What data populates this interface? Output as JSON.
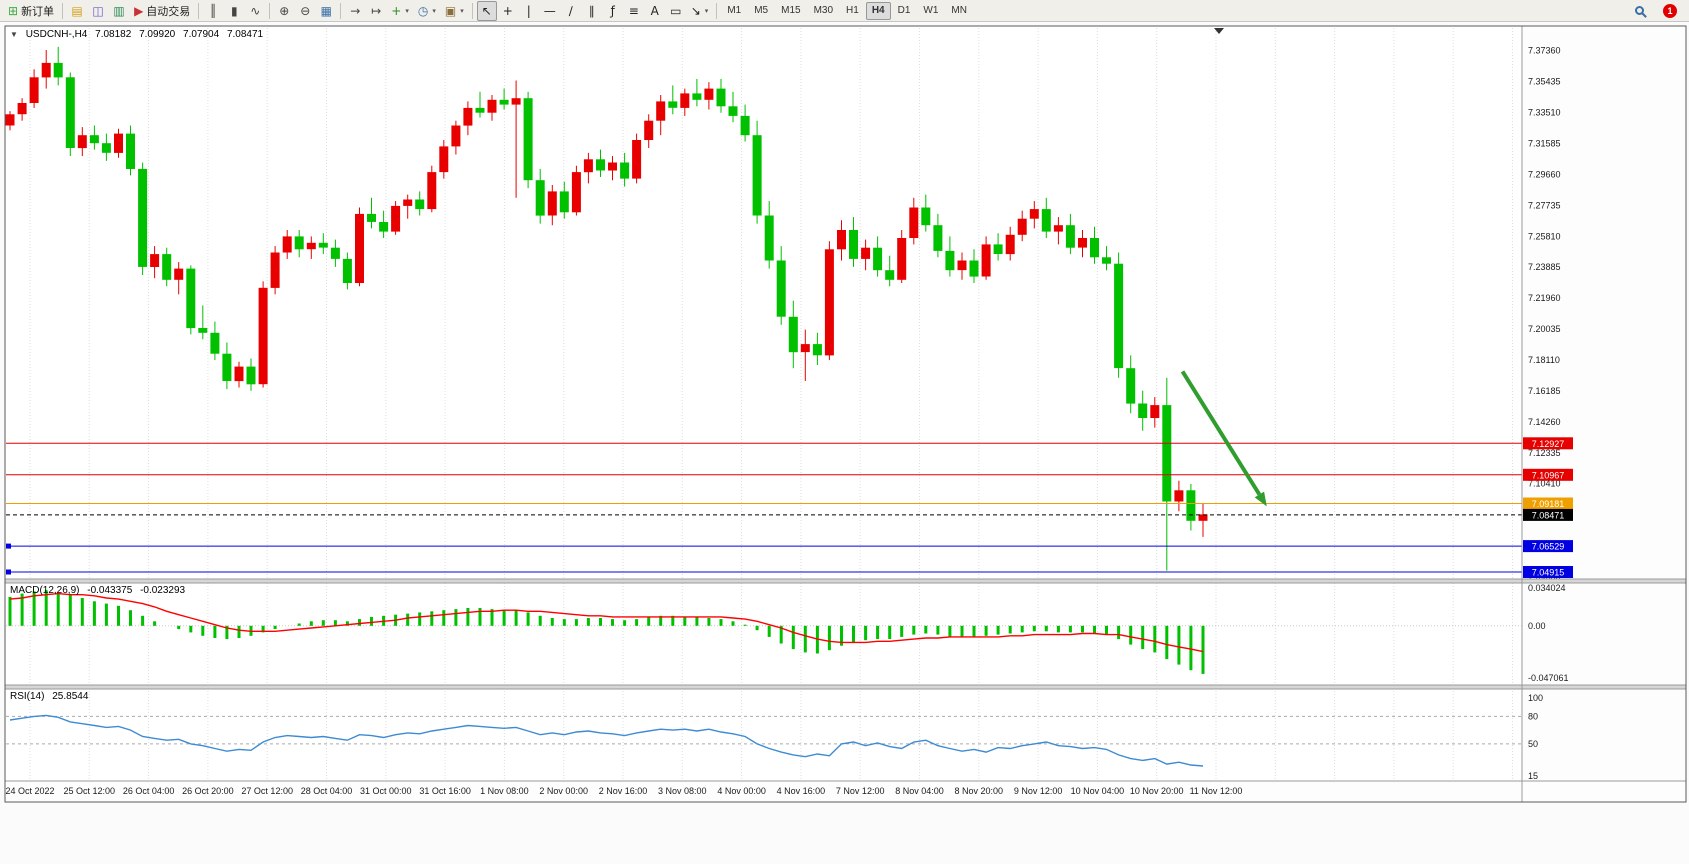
{
  "colors": {
    "up": "#e80000",
    "down": "#00c000",
    "macd_hist": "#00c000",
    "macd_signal": "#ff0000",
    "rsi_line": "#3d8bd4",
    "arrow": "#2f9e2f",
    "grid": "#dedede",
    "axis_text": "#1a1a1a"
  },
  "toolbar": {
    "items": [
      {
        "type": "btn",
        "name": "new-order-button",
        "glyph": "⊞",
        "color": "#3fae49",
        "label": "新订单"
      },
      {
        "type": "sep"
      },
      {
        "type": "btn",
        "name": "market-watch-button",
        "glyph": "▤",
        "color": "#d4a017"
      },
      {
        "type": "btn",
        "name": "data-window-button",
        "glyph": "◫",
        "color": "#6a5acd"
      },
      {
        "type": "btn",
        "name": "navigator-button",
        "glyph": "▥",
        "color": "#2e8b57"
      },
      {
        "type": "btn",
        "name": "auto-trading-button",
        "glyph": "▶",
        "color": "#c83232",
        "label": "自动交易"
      },
      {
        "type": "sep"
      },
      {
        "type": "btn",
        "name": "bar-chart-button",
        "glyph": "║",
        "color": "#444444"
      },
      {
        "type": "btn",
        "name": "candlestick-chart-button",
        "glyph": "▮",
        "color": "#444444"
      },
      {
        "type": "btn",
        "name": "line-chart-button",
        "glyph": "∿",
        "color": "#444444"
      },
      {
        "type": "sep"
      },
      {
        "type": "btn",
        "name": "zoom-in-button",
        "glyph": "⊕",
        "color": "#444444"
      },
      {
        "type": "btn",
        "name": "zoom-out-button",
        "glyph": "⊖",
        "color": "#444444"
      },
      {
        "type": "btn",
        "name": "tile-windows-button",
        "glyph": "▦",
        "color": "#3a6ea5"
      },
      {
        "type": "sep"
      },
      {
        "type": "btn",
        "name": "auto-scroll-button",
        "glyph": "→",
        "color": "#444444"
      },
      {
        "type": "btn",
        "name": "chart-shift-button",
        "glyph": "↦",
        "color": "#444444"
      },
      {
        "type": "btn",
        "name": "indicators-button",
        "glyph": "+",
        "color": "#2e8b22",
        "dropdown": true
      },
      {
        "type": "btn",
        "name": "periods-button",
        "glyph": "◷",
        "color": "#3a6ea5",
        "dropdown": true
      },
      {
        "type": "btn",
        "name": "templates-button",
        "glyph": "▣",
        "color": "#8a6d3b",
        "dropdown": true
      },
      {
        "type": "sep"
      },
      {
        "type": "btn",
        "name": "cursor-button",
        "glyph": "↖",
        "color": "#222222",
        "active": true
      },
      {
        "type": "btn",
        "name": "crosshair-button",
        "glyph": "+",
        "color": "#222222"
      },
      {
        "type": "btn",
        "name": "vertical-line-button",
        "glyph": "|",
        "color": "#222222"
      },
      {
        "type": "btn",
        "name": "horizontal-line-button",
        "glyph": "—",
        "color": "#222222"
      },
      {
        "type": "btn",
        "name": "trendline-button",
        "glyph": "∕",
        "color": "#222222"
      },
      {
        "type": "btn",
        "name": "channel-button",
        "glyph": "∥",
        "color": "#222222"
      },
      {
        "type": "btn",
        "name": "fibonacci-button",
        "glyph": "ƒ",
        "color": "#222222"
      },
      {
        "type": "btn",
        "name": "shapes-button",
        "glyph": "≡",
        "color": "#222222"
      },
      {
        "type": "btn",
        "name": "text-button",
        "glyph": "A",
        "color": "#222222"
      },
      {
        "type": "btn",
        "name": "text-label-button",
        "glyph": "▭",
        "color": "#222222"
      },
      {
        "type": "btn",
        "name": "arrows-button",
        "glyph": "↘",
        "color": "#222222",
        "dropdown": true
      },
      {
        "type": "sep"
      },
      {
        "type": "tf",
        "label": "M1"
      },
      {
        "type": "tf",
        "label": "M5"
      },
      {
        "type": "tf",
        "label": "M15"
      },
      {
        "type": "tf",
        "label": "M30"
      },
      {
        "type": "tf",
        "label": "H1"
      },
      {
        "type": "tf",
        "label": "H4",
        "active": true
      },
      {
        "type": "tf",
        "label": "D1"
      },
      {
        "type": "tf",
        "label": "W1"
      },
      {
        "type": "tf",
        "label": "MN"
      },
      {
        "type": "spacer"
      },
      {
        "type": "mag",
        "name": "search-button"
      },
      {
        "type": "badge",
        "name": "notification-badge",
        "label": "1"
      }
    ]
  },
  "chart_header": {
    "collapse": "▼"
  },
  "chart_data": {
    "type": "candlestick",
    "symbol_period": "USDCNH-,H4",
    "ohlc": {
      "open": "7.08182",
      "high": "7.09920",
      "low": "7.07904",
      "close": "7.08471"
    },
    "ylim": [
      7.0448,
      7.3877
    ],
    "candles": [
      [
        7.327,
        7.336,
        7.324,
        7.334
      ],
      [
        7.334,
        7.344,
        7.33,
        7.341
      ],
      [
        7.341,
        7.362,
        7.338,
        7.357
      ],
      [
        7.357,
        7.374,
        7.35,
        7.366
      ],
      [
        7.366,
        7.376,
        7.352,
        7.357
      ],
      [
        7.357,
        7.36,
        7.308,
        7.313
      ],
      [
        7.313,
        7.326,
        7.308,
        7.321
      ],
      [
        7.321,
        7.327,
        7.312,
        7.316
      ],
      [
        7.316,
        7.322,
        7.305,
        7.31
      ],
      [
        7.31,
        7.325,
        7.307,
        7.322
      ],
      [
        7.322,
        7.327,
        7.296,
        7.3
      ],
      [
        7.3,
        7.304,
        7.234,
        7.239
      ],
      [
        7.239,
        7.252,
        7.232,
        7.247
      ],
      [
        7.247,
        7.251,
        7.227,
        7.231
      ],
      [
        7.231,
        7.242,
        7.222,
        7.238
      ],
      [
        7.238,
        7.24,
        7.197,
        7.201
      ],
      [
        7.201,
        7.215,
        7.194,
        7.198
      ],
      [
        7.198,
        7.205,
        7.181,
        7.185
      ],
      [
        7.185,
        7.192,
        7.163,
        7.168
      ],
      [
        7.168,
        7.18,
        7.164,
        7.177
      ],
      [
        7.177,
        7.182,
        7.162,
        7.166
      ],
      [
        7.166,
        7.23,
        7.164,
        7.226
      ],
      [
        7.226,
        7.252,
        7.222,
        7.248
      ],
      [
        7.248,
        7.262,
        7.244,
        7.258
      ],
      [
        7.258,
        7.262,
        7.245,
        7.25
      ],
      [
        7.25,
        7.258,
        7.244,
        7.254
      ],
      [
        7.254,
        7.26,
        7.247,
        7.251
      ],
      [
        7.251,
        7.256,
        7.239,
        7.244
      ],
      [
        7.244,
        7.248,
        7.225,
        7.229
      ],
      [
        7.229,
        7.276,
        7.227,
        7.272
      ],
      [
        7.272,
        7.282,
        7.263,
        7.267
      ],
      [
        7.267,
        7.274,
        7.257,
        7.261
      ],
      [
        7.261,
        7.28,
        7.259,
        7.277
      ],
      [
        7.277,
        7.284,
        7.269,
        7.281
      ],
      [
        7.281,
        7.286,
        7.271,
        7.275
      ],
      [
        7.275,
        7.302,
        7.273,
        7.298
      ],
      [
        7.298,
        7.318,
        7.294,
        7.314
      ],
      [
        7.314,
        7.33,
        7.309,
        7.327
      ],
      [
        7.327,
        7.342,
        7.321,
        7.338
      ],
      [
        7.338,
        7.348,
        7.332,
        7.335
      ],
      [
        7.335,
        7.346,
        7.33,
        7.343
      ],
      [
        7.343,
        7.35,
        7.337,
        7.34
      ],
      [
        7.34,
        7.355,
        7.282,
        7.344
      ],
      [
        7.344,
        7.348,
        7.288,
        7.293
      ],
      [
        7.293,
        7.3,
        7.266,
        7.271
      ],
      [
        7.271,
        7.29,
        7.265,
        7.286
      ],
      [
        7.286,
        7.292,
        7.269,
        7.273
      ],
      [
        7.273,
        7.302,
        7.271,
        7.298
      ],
      [
        7.298,
        7.31,
        7.291,
        7.306
      ],
      [
        7.306,
        7.312,
        7.295,
        7.299
      ],
      [
        7.299,
        7.308,
        7.293,
        7.304
      ],
      [
        7.304,
        7.31,
        7.289,
        7.294
      ],
      [
        7.294,
        7.322,
        7.291,
        7.318
      ],
      [
        7.318,
        7.334,
        7.313,
        7.33
      ],
      [
        7.33,
        7.346,
        7.321,
        7.342
      ],
      [
        7.342,
        7.352,
        7.334,
        7.338
      ],
      [
        7.338,
        7.35,
        7.333,
        7.347
      ],
      [
        7.347,
        7.356,
        7.339,
        7.343
      ],
      [
        7.343,
        7.354,
        7.337,
        7.35
      ],
      [
        7.35,
        7.356,
        7.335,
        7.339
      ],
      [
        7.339,
        7.348,
        7.329,
        7.333
      ],
      [
        7.333,
        7.34,
        7.317,
        7.321
      ],
      [
        7.321,
        7.33,
        7.266,
        7.271
      ],
      [
        7.271,
        7.28,
        7.238,
        7.243
      ],
      [
        7.243,
        7.252,
        7.203,
        7.208
      ],
      [
        7.208,
        7.218,
        7.176,
        7.186
      ],
      [
        7.186,
        7.2,
        7.168,
        7.191
      ],
      [
        7.191,
        7.198,
        7.178,
        7.184
      ],
      [
        7.184,
        7.255,
        7.181,
        7.25
      ],
      [
        7.25,
        7.268,
        7.243,
        7.262
      ],
      [
        7.262,
        7.27,
        7.239,
        7.244
      ],
      [
        7.244,
        7.256,
        7.237,
        7.251
      ],
      [
        7.251,
        7.258,
        7.233,
        7.237
      ],
      [
        7.237,
        7.246,
        7.227,
        7.231
      ],
      [
        7.231,
        7.262,
        7.229,
        7.257
      ],
      [
        7.257,
        7.282,
        7.253,
        7.276
      ],
      [
        7.276,
        7.284,
        7.261,
        7.265
      ],
      [
        7.265,
        7.272,
        7.245,
        7.249
      ],
      [
        7.249,
        7.258,
        7.233,
        7.237
      ],
      [
        7.237,
        7.248,
        7.231,
        7.243
      ],
      [
        7.243,
        7.25,
        7.229,
        7.233
      ],
      [
        7.233,
        7.258,
        7.231,
        7.253
      ],
      [
        7.253,
        7.26,
        7.243,
        7.247
      ],
      [
        7.247,
        7.264,
        7.243,
        7.259
      ],
      [
        7.259,
        7.274,
        7.255,
        7.269
      ],
      [
        7.269,
        7.28,
        7.263,
        7.275
      ],
      [
        7.275,
        7.282,
        7.257,
        7.261
      ],
      [
        7.261,
        7.27,
        7.253,
        7.265
      ],
      [
        7.265,
        7.272,
        7.247,
        7.251
      ],
      [
        7.251,
        7.262,
        7.245,
        7.257
      ],
      [
        7.257,
        7.264,
        7.241,
        7.245
      ],
      [
        7.245,
        7.252,
        7.237,
        7.241
      ],
      [
        7.241,
        7.248,
        7.17,
        7.176
      ],
      [
        7.176,
        7.184,
        7.148,
        7.154
      ],
      [
        7.154,
        7.162,
        7.137,
        7.145
      ],
      [
        7.145,
        7.158,
        7.139,
        7.153
      ],
      [
        7.153,
        7.17,
        7.05,
        7.093
      ],
      [
        7.093,
        7.106,
        7.087,
        7.1
      ],
      [
        7.1,
        7.104,
        7.075,
        7.081
      ],
      [
        7.081,
        7.092,
        7.071,
        7.085
      ]
    ],
    "x_labels": [
      "24 Oct 2022",
      "25 Oct 12:00",
      "26 Oct 04:00",
      "26 Oct 20:00",
      "27 Oct 12:00",
      "28 Oct 04:00",
      "31 Oct 00:00",
      "31 Oct 16:00",
      "1 Nov 08:00",
      "2 Nov 00:00",
      "2 Nov 16:00",
      "3 Nov 08:00",
      "4 Nov 00:00",
      "4 Nov 16:00",
      "7 Nov 12:00",
      "8 Nov 04:00",
      "8 Nov 20:00",
      "9 Nov 12:00",
      "10 Nov 04:00",
      "10 Nov 20:00",
      "11 Nov 12:00"
    ],
    "y_axis_labels": [
      "7.37360",
      "7.35435",
      "7.33510",
      "7.31585",
      "7.29660",
      "7.27735",
      "7.25810",
      "7.23885",
      "7.21960",
      "7.20035",
      "7.18110",
      "7.16185",
      "7.14260",
      "7.12335",
      "7.10410",
      "7.08485",
      "7.06560",
      "7.04635"
    ],
    "levels": [
      {
        "price": 7.12927,
        "label": "7.12927",
        "color": "#e60000",
        "kind": "resistance-line"
      },
      {
        "price": 7.10967,
        "label": "7.10967",
        "color": "#e60000",
        "kind": "resistance-line"
      },
      {
        "price": 7.09181,
        "label": "7.09181",
        "color": "#efa000",
        "kind": "pivot-line"
      },
      {
        "price": 7.08471,
        "label": "7.08471",
        "color": "#000000",
        "style": "dashed",
        "kind": "bid-price-line"
      },
      {
        "price": 7.06529,
        "label": "7.06529",
        "color": "#0000e0",
        "kind": "support-line"
      },
      {
        "price": 7.04915,
        "label": "7.04915",
        "color": "#0000e0",
        "kind": "support-line"
      }
    ],
    "arrow": {
      "from": {
        "i": 97.3,
        "p": 7.174
      },
      "to": {
        "i": 104.3,
        "p": 7.09
      }
    },
    "macd": {
      "name": "MACD(12,26,9)",
      "value_main": "-0.043375",
      "value_signal": "-0.023293",
      "ylim": [
        -0.047061,
        0.034024
      ],
      "y_labels": [
        "0.034024",
        "0.00",
        "-0.047061"
      ],
      "values": [
        0.026,
        0.029,
        0.031,
        0.032,
        0.03,
        0.028,
        0.025,
        0.022,
        0.02,
        0.018,
        0.014,
        0.009,
        0.004,
        0.0,
        -0.003,
        -0.006,
        -0.009,
        -0.011,
        -0.012,
        -0.011,
        -0.009,
        -0.006,
        -0.003,
        0.0,
        0.002,
        0.004,
        0.005,
        0.005,
        0.004,
        0.006,
        0.008,
        0.009,
        0.01,
        0.011,
        0.012,
        0.013,
        0.014,
        0.015,
        0.016,
        0.016,
        0.015,
        0.014,
        0.014,
        0.012,
        0.009,
        0.007,
        0.006,
        0.006,
        0.007,
        0.007,
        0.006,
        0.005,
        0.006,
        0.008,
        0.009,
        0.009,
        0.008,
        0.008,
        0.007,
        0.006,
        0.004,
        0.001,
        -0.004,
        -0.01,
        -0.016,
        -0.021,
        -0.024,
        -0.025,
        -0.022,
        -0.018,
        -0.015,
        -0.013,
        -0.012,
        -0.012,
        -0.01,
        -0.008,
        -0.007,
        -0.008,
        -0.01,
        -0.01,
        -0.01,
        -0.009,
        -0.008,
        -0.007,
        -0.006,
        -0.005,
        -0.005,
        -0.006,
        -0.006,
        -0.006,
        -0.007,
        -0.008,
        -0.012,
        -0.017,
        -0.021,
        -0.024,
        -0.03,
        -0.035,
        -0.04,
        -0.0434
      ],
      "signal": [
        0.024,
        0.025,
        0.027,
        0.028,
        0.029,
        0.028,
        0.028,
        0.027,
        0.025,
        0.024,
        0.022,
        0.02,
        0.017,
        0.013,
        0.01,
        0.007,
        0.004,
        0.001,
        -0.002,
        -0.004,
        -0.005,
        -0.005,
        -0.005,
        -0.004,
        -0.003,
        -0.002,
        -0.001,
        0.0,
        0.001,
        0.002,
        0.003,
        0.004,
        0.005,
        0.007,
        0.008,
        0.009,
        0.01,
        0.011,
        0.012,
        0.013,
        0.013,
        0.014,
        0.014,
        0.013,
        0.013,
        0.012,
        0.011,
        0.01,
        0.009,
        0.009,
        0.008,
        0.008,
        0.008,
        0.008,
        0.008,
        0.008,
        0.008,
        0.008,
        0.008,
        0.008,
        0.007,
        0.006,
        0.004,
        0.001,
        -0.002,
        -0.006,
        -0.009,
        -0.012,
        -0.014,
        -0.015,
        -0.015,
        -0.015,
        -0.014,
        -0.014,
        -0.013,
        -0.012,
        -0.011,
        -0.011,
        -0.01,
        -0.01,
        -0.01,
        -0.01,
        -0.01,
        -0.009,
        -0.009,
        -0.008,
        -0.008,
        -0.008,
        -0.008,
        -0.007,
        -0.007,
        -0.008,
        -0.008,
        -0.01,
        -0.012,
        -0.014,
        -0.017,
        -0.019,
        -0.021,
        -0.0233
      ]
    },
    "rsi": {
      "name": "RSI(14)",
      "value": "25.8544",
      "ylim": [
        15,
        100
      ],
      "levels": [
        80,
        50
      ],
      "y_labels": [
        "100",
        "80",
        "50",
        "15"
      ],
      "values": [
        76,
        78,
        80,
        81,
        79,
        74,
        72,
        70,
        68,
        69,
        65,
        58,
        56,
        54,
        55,
        50,
        48,
        45,
        42,
        44,
        43,
        52,
        57,
        59,
        58,
        57,
        58,
        56,
        54,
        60,
        59,
        57,
        60,
        62,
        61,
        64,
        66,
        68,
        70,
        69,
        68,
        67,
        68,
        64,
        60,
        62,
        60,
        63,
        64,
        62,
        61,
        59,
        62,
        64,
        66,
        65,
        66,
        64,
        66,
        63,
        61,
        58,
        50,
        45,
        41,
        38,
        36,
        39,
        37,
        50,
        52,
        48,
        51,
        47,
        45,
        52,
        54,
        48,
        45,
        42,
        44,
        41,
        46,
        45,
        48,
        50,
        52,
        48,
        47,
        45,
        46,
        44,
        38,
        34,
        32,
        34,
        28,
        30,
        27,
        25.85
      ]
    }
  }
}
